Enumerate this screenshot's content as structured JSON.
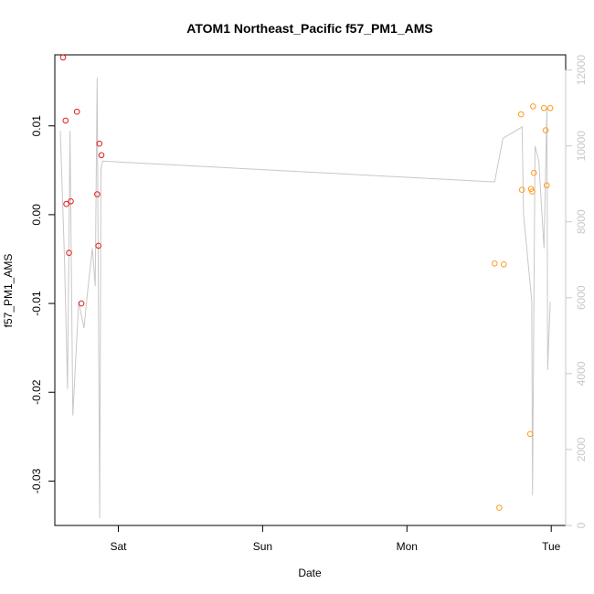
{
  "chart_data": {
    "type": "scatter",
    "title": "ATOM1 Northeast_Pacific f57_PM1_AMS",
    "xlabel": "Date",
    "ylabel": "f57_PM1_AMS",
    "x_ticks": [
      {
        "label": "Sat",
        "value": 1
      },
      {
        "label": "Sun",
        "value": 2
      },
      {
        "label": "Mon",
        "value": 3
      },
      {
        "label": "Tue",
        "value": 4
      }
    ],
    "xlim": [
      0.56,
      4.1
    ],
    "ylim_left": [
      -0.035,
      0.018
    ],
    "y_left_ticks": [
      -0.03,
      -0.02,
      -0.01,
      0.0,
      0.01
    ],
    "y_left_tick_labels": [
      "-0.03",
      "-0.02",
      "-0.01",
      "0.00",
      "0.01"
    ],
    "ylim_right": [
      0,
      12400
    ],
    "y_right_ticks": [
      0,
      2000,
      4000,
      6000,
      8000,
      10000,
      12000
    ],
    "y_right_tick_labels": [
      "0",
      "2000",
      "4000",
      "6000",
      "8000",
      "10000",
      "12000"
    ],
    "colors": {
      "series_red": "#e41a1c",
      "series_orange": "#ff9a1f",
      "altitude_line": "#c8c8c8",
      "axis": "#000000",
      "right_axis": "#c8c8c8"
    },
    "series": [
      {
        "color": "#e41a1c",
        "points": [
          {
            "x": 0.617,
            "y": 0.0177
          },
          {
            "x": 0.635,
            "y": 0.0106
          },
          {
            "x": 0.64,
            "y": 0.0012
          },
          {
            "x": 0.658,
            "y": -0.0043
          },
          {
            "x": 0.671,
            "y": 0.0015
          },
          {
            "x": 0.713,
            "y": 0.0116
          },
          {
            "x": 0.744,
            "y": -0.01
          },
          {
            "x": 0.854,
            "y": 0.0023
          },
          {
            "x": 0.862,
            "y": -0.0035
          },
          {
            "x": 0.869,
            "y": 0.008
          },
          {
            "x": 0.883,
            "y": 0.0067
          }
        ]
      },
      {
        "color": "#ff9a1f",
        "points": [
          {
            "x": 3.608,
            "y": -0.0055
          },
          {
            "x": 3.64,
            "y": -0.033
          },
          {
            "x": 3.671,
            "y": -0.0056
          },
          {
            "x": 3.791,
            "y": 0.0113
          },
          {
            "x": 3.797,
            "y": 0.0028
          },
          {
            "x": 3.854,
            "y": -0.0247
          },
          {
            "x": 3.86,
            "y": 0.0029
          },
          {
            "x": 3.868,
            "y": 0.0026
          },
          {
            "x": 3.874,
            "y": 0.0122
          },
          {
            "x": 3.88,
            "y": 0.0047
          },
          {
            "x": 3.949,
            "y": 0.012
          },
          {
            "x": 3.961,
            "y": 0.0095
          },
          {
            "x": 3.969,
            "y": 0.0033
          },
          {
            "x": 3.993,
            "y": 0.012
          }
        ]
      }
    ],
    "altitude": [
      {
        "x": 0.598,
        "y": 10400
      },
      {
        "x": 0.627,
        "y": 7000
      },
      {
        "x": 0.648,
        "y": 3600
      },
      {
        "x": 0.665,
        "y": 10400
      },
      {
        "x": 0.685,
        "y": 2900
      },
      {
        "x": 0.725,
        "y": 5900
      },
      {
        "x": 0.762,
        "y": 5200
      },
      {
        "x": 0.796,
        "y": 6500
      },
      {
        "x": 0.82,
        "y": 7300
      },
      {
        "x": 0.84,
        "y": 6300
      },
      {
        "x": 0.853,
        "y": 11800
      },
      {
        "x": 0.871,
        "y": 200
      },
      {
        "x": 0.88,
        "y": 9400
      },
      {
        "x": 0.891,
        "y": 9600
      },
      {
        "x": 3.608,
        "y": 9050
      },
      {
        "x": 3.665,
        "y": 10200
      },
      {
        "x": 3.798,
        "y": 10500
      },
      {
        "x": 3.808,
        "y": 8200
      },
      {
        "x": 3.865,
        "y": 5900
      },
      {
        "x": 3.87,
        "y": 800
      },
      {
        "x": 3.888,
        "y": 10000
      },
      {
        "x": 3.914,
        "y": 9600
      },
      {
        "x": 3.95,
        "y": 7300
      },
      {
        "x": 3.97,
        "y": 11000
      },
      {
        "x": 3.975,
        "y": 4100
      },
      {
        "x": 3.993,
        "y": 5900
      }
    ]
  }
}
